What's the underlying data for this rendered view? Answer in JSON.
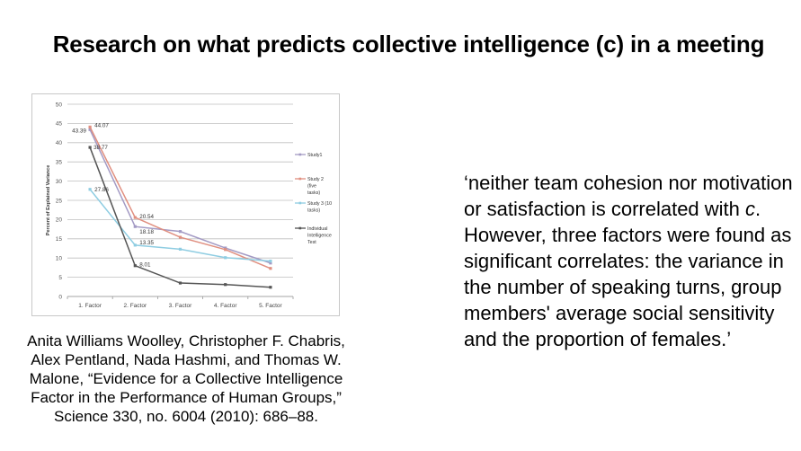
{
  "slide": {
    "title": "Research on what predicts collective intelligence (c) in a meeting",
    "citation": [
      "Anita Williams Woolley, Christopher F. Chabris,",
      "Alex Pentland, Nada Hashmi, and Thomas W.",
      "Malone, “Evidence for a Collective Intelligence",
      "Factor in the Performance of Human Groups,”",
      "Science 330, no. 6004 (2010): 686–88."
    ],
    "quote_part1": "‘neither team cohesion nor motivation or satisfaction is correlated with ",
    "quote_italic": "c",
    "quote_part2": ". However, three factors were found as significant correlates: the variance in the number of speaking turns, group members' average social sensitivity and the proportion of females.’"
  },
  "chart_data": {
    "type": "line",
    "title": "",
    "xlabel": "",
    "ylabel": "Percent of Explained Variance",
    "categories": [
      "1. Factor",
      "2. Factor",
      "3. Factor",
      "4. Factor",
      "5. Factor"
    ],
    "ylim": [
      0,
      50
    ],
    "yticks": [
      0,
      5,
      10,
      15,
      20,
      25,
      30,
      35,
      40,
      45,
      50
    ],
    "grid": true,
    "legend_position": "right",
    "series": [
      {
        "name": "Study1",
        "color": "#a39ac4",
        "values": [
          43.39,
          18.18,
          16.9,
          12.6,
          8.7
        ]
      },
      {
        "name": "Study 2 (five tasks)",
        "color": "#e08f80",
        "values": [
          44.07,
          20.54,
          15.4,
          12.2,
          7.3
        ]
      },
      {
        "name": "Study 3 (10 tasks)",
        "color": "#8fcde2",
        "values": [
          27.86,
          13.35,
          12.3,
          10.1,
          9.2
        ]
      },
      {
        "name": "Individual Intelligence Test",
        "color": "#555555",
        "values": [
          38.77,
          8.01,
          3.5,
          3.1,
          2.4
        ]
      }
    ],
    "data_labels": [
      "43.39",
      "44.07",
      "38.77",
      "27.86",
      "20.54",
      "18.18",
      "13.35",
      "8.01"
    ]
  }
}
